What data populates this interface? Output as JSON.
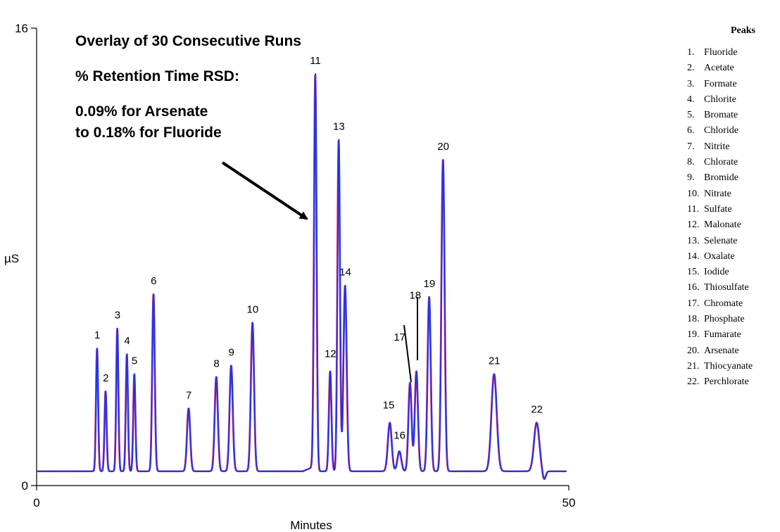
{
  "chart_data": {
    "type": "line",
    "xlabel": "Minutes",
    "ylabel": "µS",
    "xlim": [
      0,
      50
    ],
    "ylim": [
      0,
      16
    ],
    "x_ticks": [
      "0",
      "50"
    ],
    "y_ticks": [
      "0",
      "16"
    ],
    "baseline": 0.5,
    "series": [
      {
        "color": "#cc2266"
      },
      {
        "color": "#2233ee"
      }
    ],
    "peaks": [
      {
        "label": "1",
        "x": 5.7,
        "y": 4.8,
        "width": 0.1
      },
      {
        "label": "2",
        "x": 6.5,
        "y": 3.3,
        "width": 0.1
      },
      {
        "label": "3",
        "x": 7.6,
        "y": 5.5,
        "width": 0.1
      },
      {
        "label": "4",
        "x": 8.5,
        "y": 4.6,
        "width": 0.1
      },
      {
        "label": "5",
        "x": 9.2,
        "y": 3.9,
        "width": 0.1
      },
      {
        "label": "6",
        "x": 11.0,
        "y": 6.7,
        "width": 0.12
      },
      {
        "label": "7",
        "x": 14.3,
        "y": 2.7,
        "width": 0.15
      },
      {
        "label": "8",
        "x": 16.9,
        "y": 3.8,
        "width": 0.15
      },
      {
        "label": "9",
        "x": 18.3,
        "y": 4.2,
        "width": 0.15
      },
      {
        "label": "10",
        "x": 20.3,
        "y": 5.7,
        "width": 0.15
      },
      {
        "label": "11",
        "x": 26.2,
        "y": 14.4,
        "width": 0.12
      },
      {
        "label": "12",
        "x": 27.6,
        "y": 4.0,
        "width": 0.12
      },
      {
        "label": "13",
        "x": 28.4,
        "y": 12.1,
        "width": 0.12
      },
      {
        "label": "14",
        "x": 29.0,
        "y": 7.0,
        "width": 0.15
      },
      {
        "label": "15",
        "x": 33.2,
        "y": 2.2,
        "width": 0.18
      },
      {
        "label": "16",
        "x": 34.1,
        "y": 1.2,
        "width": 0.18
      },
      {
        "label": "17",
        "x": 35.1,
        "y": 3.6,
        "width": 0.15
      },
      {
        "label": "18",
        "x": 35.7,
        "y": 4.0,
        "width": 0.15
      },
      {
        "label": "19",
        "x": 36.9,
        "y": 6.6,
        "width": 0.15
      },
      {
        "label": "20",
        "x": 38.2,
        "y": 11.4,
        "width": 0.15
      },
      {
        "label": "",
        "x": 39.8,
        "y": 0.5,
        "width": 0.2
      },
      {
        "label": "21",
        "x": 43.0,
        "y": 3.9,
        "width": 0.25
      },
      {
        "label": "22",
        "x": 47.0,
        "y": 2.2,
        "width": 0.25
      },
      {
        "label": "",
        "x": 47.7,
        "y": 0.2,
        "width": 0.15
      }
    ],
    "annotations": [
      "Overlay of 30 Consecutive Runs",
      "% Retention Time RSD:",
      "0.09% for Arsenate",
      "to 0.18% for Fluoride"
    ],
    "legend": {
      "title": "Peaks",
      "items": [
        {
          "num": "1.",
          "name": "Fluoride"
        },
        {
          "num": "2.",
          "name": "Acetate"
        },
        {
          "num": "3.",
          "name": "Formate"
        },
        {
          "num": "4.",
          "name": "Chlorite"
        },
        {
          "num": "5.",
          "name": "Bromate"
        },
        {
          "num": "6.",
          "name": "Chloride"
        },
        {
          "num": "7.",
          "name": "Nitrite"
        },
        {
          "num": "8.",
          "name": "Chlorate"
        },
        {
          "num": "9.",
          "name": "Bromide"
        },
        {
          "num": "10.",
          "name": "Nitrate"
        },
        {
          "num": "11.",
          "name": "Sulfate"
        },
        {
          "num": "12.",
          "name": "Malonate"
        },
        {
          "num": "13.",
          "name": "Selenate"
        },
        {
          "num": "14.",
          "name": "Oxalate"
        },
        {
          "num": "15.",
          "name": "Iodide"
        },
        {
          "num": "16.",
          "name": "Thiosulfate"
        },
        {
          "num": "17.",
          "name": "Chromate"
        },
        {
          "num": "18.",
          "name": "Phosphate"
        },
        {
          "num": "19.",
          "name": "Fumarate"
        },
        {
          "num": "20.",
          "name": "Arsenate"
        },
        {
          "num": "21.",
          "name": "Thiocyanate"
        },
        {
          "num": "22.",
          "name": "Perchlorate"
        }
      ]
    }
  }
}
